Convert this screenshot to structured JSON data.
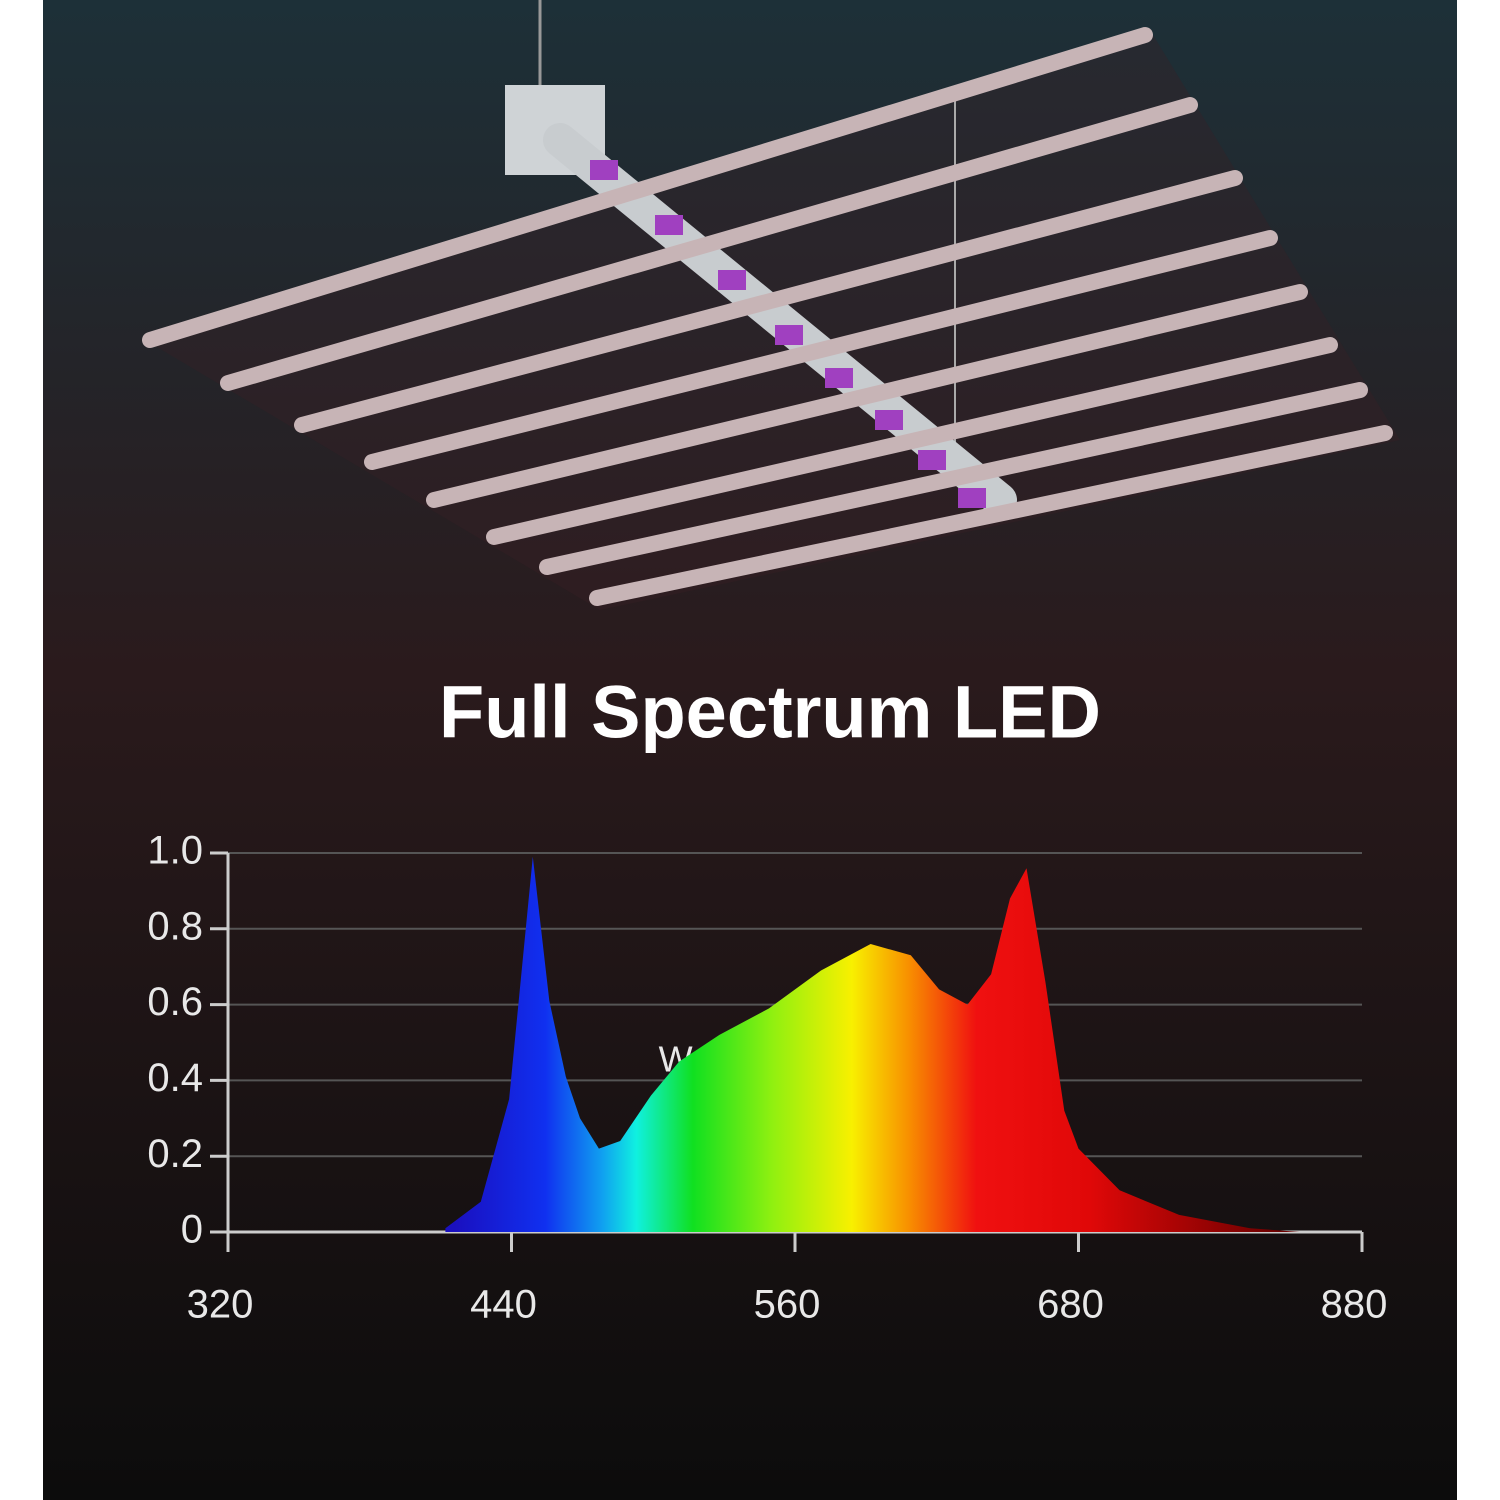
{
  "chart_data": {
    "type": "area",
    "title": "Full Spectrum LED",
    "x_label": "Wavelength(nm)",
    "x": [
      412,
      427,
      439,
      449,
      456,
      463,
      469,
      477,
      486,
      499,
      511,
      528,
      549,
      571,
      592,
      609,
      621,
      633,
      643,
      651,
      658,
      666,
      674,
      680,
      709,
      751,
      801,
      836
    ],
    "values": [
      0.01,
      0.08,
      0.35,
      0.99,
      0.61,
      0.41,
      0.3,
      0.22,
      0.24,
      0.36,
      0.45,
      0.52,
      0.59,
      0.69,
      0.76,
      0.73,
      0.64,
      0.6,
      0.68,
      0.88,
      0.96,
      0.66,
      0.32,
      0.22,
      0.11,
      0.045,
      0.01,
      0
    ],
    "xlim": [
      320,
      880
    ],
    "xticks": [
      320,
      440,
      560,
      680,
      880
    ],
    "ylim": [
      0,
      1
    ],
    "yticks": [
      0,
      0.2,
      0.4,
      0.6,
      0.8,
      {
        "value": 1,
        "label": "1.0"
      }
    ],
    "grid": true
  }
}
